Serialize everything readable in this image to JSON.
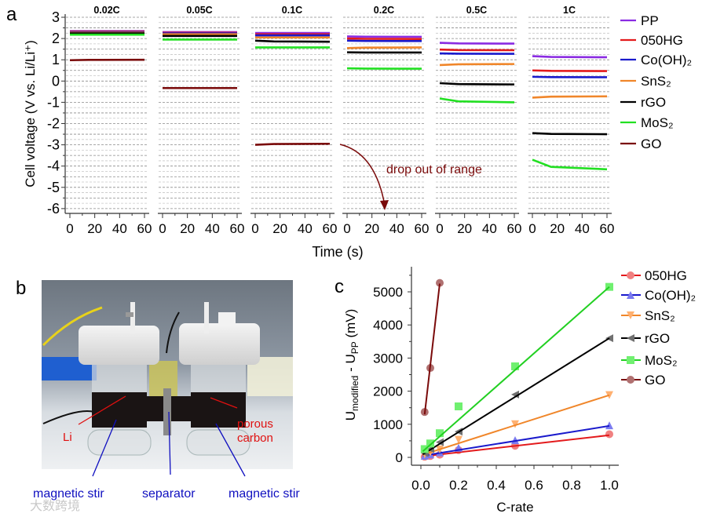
{
  "chart_data": [
    {
      "type": "line",
      "panel_label": "a",
      "title": "",
      "xlabel": "Time (s)",
      "ylabel": "Cell voltage (V vs. Li/Li⁺)",
      "ylim": [
        -6,
        3
      ],
      "xlim": [
        0,
        60
      ],
      "y_ticks": [
        "-6",
        "-5",
        "-4",
        "-3",
        "-2",
        "-1",
        "0",
        "1",
        "2",
        "3"
      ],
      "x_ticks": [
        "0",
        "20",
        "40",
        "60"
      ],
      "grid": "horizontal dashed",
      "legend_position": "right",
      "panels": [
        "0.02C",
        "0.05C",
        "0.1C",
        "0.2C",
        "0.5C",
        "1C"
      ],
      "series": [
        {
          "name": "PP",
          "color": "#8a2be2",
          "values": [
            [
              2.35,
              2.35
            ],
            [
              2.3,
              2.3
            ],
            [
              2.26,
              2.26
            ],
            [
              2.1,
              2.08
            ],
            [
              1.8,
              1.76
            ],
            [
              1.17,
              1.12
            ]
          ]
        },
        {
          "name": "050HG",
          "color": "#e31a1c",
          "values": [
            [
              2.33,
              2.33
            ],
            [
              2.27,
              2.27
            ],
            [
              2.2,
              2.2
            ],
            [
              2.0,
              1.98
            ],
            [
              1.48,
              1.45
            ],
            [
              0.5,
              0.47
            ]
          ]
        },
        {
          "name": "Co(OH)₂",
          "color": "#1a1acc",
          "values": [
            [
              2.3,
              2.3
            ],
            [
              2.24,
              2.24
            ],
            [
              2.15,
              2.15
            ],
            [
              1.9,
              1.88
            ],
            [
              1.3,
              1.28
            ],
            [
              0.2,
              0.18
            ]
          ]
        },
        {
          "name": "SnS₂",
          "color": "#f0862a",
          "values": [
            [
              2.27,
              2.27
            ],
            [
              2.2,
              2.2
            ],
            [
              2.05,
              2.05
            ],
            [
              1.55,
              1.58
            ],
            [
              0.75,
              0.8
            ],
            [
              -0.78,
              -0.72
            ]
          ]
        },
        {
          "name": "rGO",
          "color": "#000000",
          "values": [
            [
              2.24,
              2.24
            ],
            [
              2.12,
              2.12
            ],
            [
              1.9,
              1.85
            ],
            [
              1.35,
              1.34
            ],
            [
              -0.1,
              -0.16
            ],
            [
              -2.45,
              -2.5
            ]
          ]
        },
        {
          "name": "MoS₂",
          "color": "#22e022",
          "values": [
            [
              2.18,
              2.18
            ],
            [
              1.95,
              1.95
            ],
            [
              1.58,
              1.58
            ],
            [
              0.6,
              0.58
            ],
            [
              -0.82,
              -1.0
            ],
            [
              -3.7,
              -4.15
            ]
          ]
        },
        {
          "name": "GO",
          "color": "#7a0a0a",
          "values": [
            [
              0.98,
              1.0
            ],
            [
              -0.33,
              -0.33
            ],
            [
              -3.0,
              -2.95
            ],
            null,
            null,
            null
          ]
        }
      ],
      "annotation": "drop out of range"
    },
    {
      "type": "scatter",
      "panel_label": "c",
      "title": "",
      "xlabel": "C-rate",
      "ylabel_parts": [
        "U",
        "modified",
        " - U",
        "PP",
        " (mV)"
      ],
      "xlim": [
        -0.03,
        1.05
      ],
      "ylim": [
        -250,
        5600
      ],
      "x_ticks": [
        "0.0",
        "0.2",
        "0.4",
        "0.6",
        "0.8",
        "1.0"
      ],
      "y_ticks": [
        "0",
        "1000",
        "2000",
        "3000",
        "4000",
        "5000"
      ],
      "legend_position": "right",
      "series": [
        {
          "name": "050HG",
          "color": "#e31a1c",
          "marker": "circle",
          "fill": "#f08080",
          "x": [
            0.02,
            0.05,
            0.1,
            0.2,
            0.5,
            1.0
          ],
          "y": [
            20,
            40,
            80,
            220,
            350,
            700
          ],
          "fit": [
            [
              0.01,
              30
            ],
            [
              1.0,
              670
            ]
          ]
        },
        {
          "name": "Co(OH)₂",
          "color": "#1a1acc",
          "marker": "triangle-up",
          "fill": "#7b7bf0",
          "x": [
            0.02,
            0.05,
            0.1,
            0.2,
            0.5,
            1.0
          ],
          "y": [
            50,
            90,
            150,
            290,
            520,
            970
          ],
          "fit": [
            [
              0.01,
              50
            ],
            [
              1.0,
              950
            ]
          ]
        },
        {
          "name": "SnS₂",
          "color": "#f0862a",
          "marker": "triangle-down",
          "fill": "#ffb070",
          "x": [
            0.02,
            0.05,
            0.1,
            0.2,
            0.5,
            1.0
          ],
          "y": [
            90,
            150,
            240,
            530,
            1000,
            1880
          ],
          "fit": [
            [
              0.01,
              80
            ],
            [
              1.0,
              1880
            ]
          ]
        },
        {
          "name": "rGO",
          "color": "#000000",
          "marker": "triangle-left",
          "fill": "#707070",
          "x": [
            0.02,
            0.05,
            0.1,
            0.2,
            0.5,
            1.0
          ],
          "y": [
            130,
            250,
            460,
            780,
            1900,
            3600
          ],
          "fit": [
            [
              0.01,
              90
            ],
            [
              1.0,
              3600
            ]
          ]
        },
        {
          "name": "MoS₂",
          "color": "#22d022",
          "marker": "square",
          "fill": "#70f070",
          "x": [
            0.02,
            0.05,
            0.1,
            0.2,
            0.5,
            1.0
          ],
          "y": [
            250,
            420,
            730,
            1540,
            2750,
            5150
          ],
          "fit": [
            [
              0.01,
              180
            ],
            [
              1.0,
              5150
            ]
          ]
        },
        {
          "name": "GO",
          "color": "#7a0a0a",
          "marker": "circle",
          "fill": "#b07070",
          "x": [
            0.02,
            0.05,
            0.1
          ],
          "y": [
            1370,
            2700,
            5270
          ],
          "fit": [
            [
              0.02,
              1300
            ],
            [
              0.1,
              5250
            ]
          ]
        }
      ]
    }
  ],
  "photo": {
    "panel_label": "b",
    "labels": {
      "li": "Li",
      "porous": "porous",
      "carbon": "carbon",
      "stir_left": "magnetic stir",
      "separator": "separator",
      "stir_right": "magnetic stir"
    },
    "watermark": "大数跨境"
  }
}
